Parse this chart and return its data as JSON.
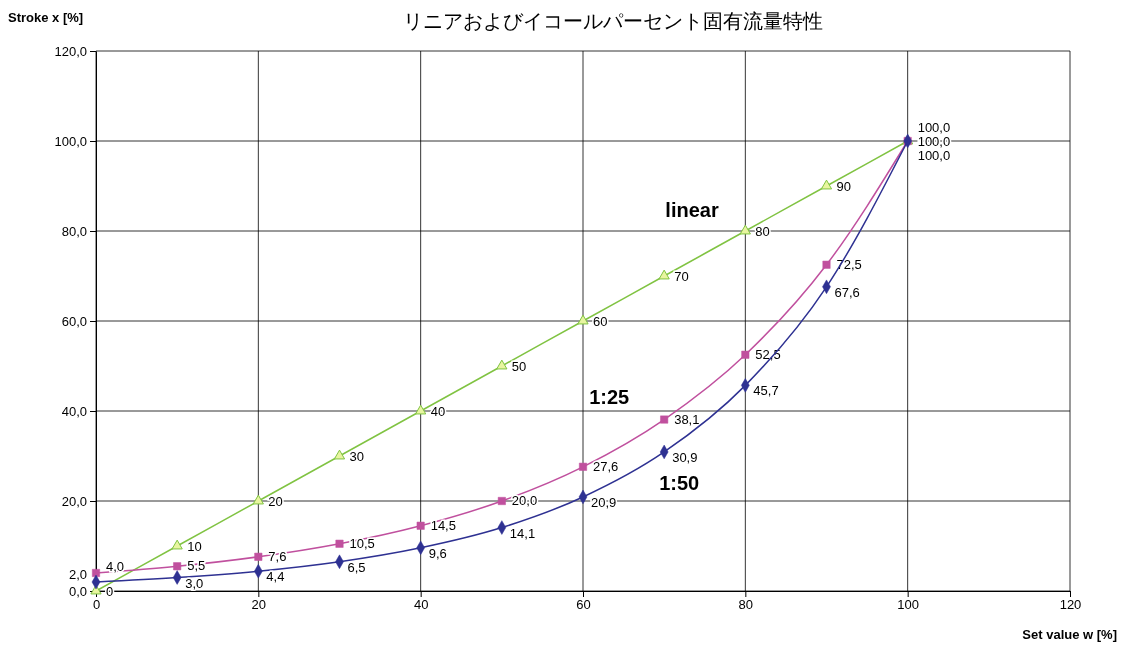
{
  "chart_data": {
    "type": "line",
    "title": "リニアおよびイコールパーセント固有流量特性",
    "xlabel": "Set value w [%]",
    "ylabel": "Stroke x [%]",
    "xlim": [
      0,
      120
    ],
    "xticks": [
      0,
      20,
      40,
      {
        "value": 60,
        "label": "60"
      },
      80,
      100,
      120
    ],
    "ylim": [
      0,
      120
    ],
    "yticks": [
      {
        "value": 0,
        "label": "0,0"
      },
      {
        "value": 20,
        "label": "20,0"
      },
      {
        "value": 40,
        "label": "40,0"
      },
      {
        "value": 60,
        "label": "60,0"
      },
      {
        "value": 80,
        "label": "80,0"
      },
      {
        "value": 100,
        "label": "100,0"
      },
      {
        "value": 120,
        "label": "120,0"
      }
    ],
    "grid": true,
    "legend": false,
    "x": [
      0,
      10,
      20,
      30,
      40,
      50,
      60,
      70,
      80,
      90,
      100
    ],
    "series": [
      {
        "name": "linear",
        "color": "#80c342",
        "marker": "triangle",
        "values": [
          0,
          10,
          20,
          30,
          40,
          50,
          60,
          70,
          80,
          90,
          100
        ],
        "value_labels": [
          "0",
          "10",
          "20",
          "30",
          "40",
          "50",
          "60",
          "70",
          "80",
          "90",
          "100,0"
        ]
      },
      {
        "name": "1:25",
        "color": "#c0509e",
        "marker": "square",
        "values": [
          4.0,
          5.5,
          7.6,
          10.5,
          14.5,
          20.0,
          27.6,
          38.1,
          52.5,
          72.5,
          100.0
        ],
        "value_labels": [
          "4,0",
          "5,5",
          "7,6",
          "10,5",
          "14,5",
          "20,0",
          "27,6",
          "38,1",
          "52,5",
          "72,5",
          "100,0"
        ]
      },
      {
        "name": "1:50",
        "color": "#2e3192",
        "marker": "diamond",
        "values": [
          2.0,
          3.0,
          4.4,
          6.5,
          9.6,
          14.1,
          20.9,
          30.9,
          45.7,
          67.6,
          100.0
        ],
        "value_labels": [
          "2,0",
          "3,0",
          "4,4",
          "6,5",
          "9,6",
          "14,1",
          "20,9",
          "30,9",
          "45,7",
          "67,6",
          "100,0"
        ]
      }
    ]
  }
}
